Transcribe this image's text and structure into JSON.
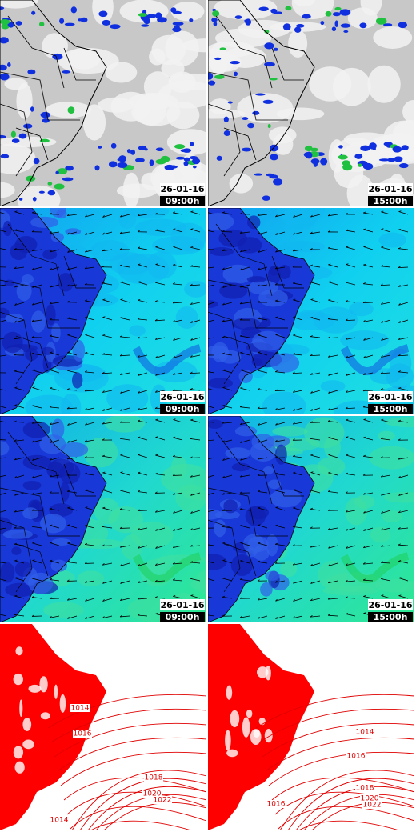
{
  "panels": [
    {
      "date": "26-01-16",
      "time": "09:00h"
    },
    {
      "date": "26-01-16",
      "time": "15:00h"
    },
    {
      "date": "26-01-16",
      "time": "09:00h"
    },
    {
      "date": "26-01-16",
      "time": "15:00h"
    },
    {
      "date": "26-01-16",
      "time": "09:00h"
    },
    {
      "date": "26-01-16",
      "time": "15:00h"
    }
  ],
  "isobar_panels": [
    {
      "labels": [
        "1014",
        "1016",
        "1018",
        "1020",
        "1022",
        "1014"
      ]
    },
    {
      "labels": [
        "1014",
        "1016",
        "1018",
        "1020",
        "1022",
        "1016"
      ]
    }
  ]
}
